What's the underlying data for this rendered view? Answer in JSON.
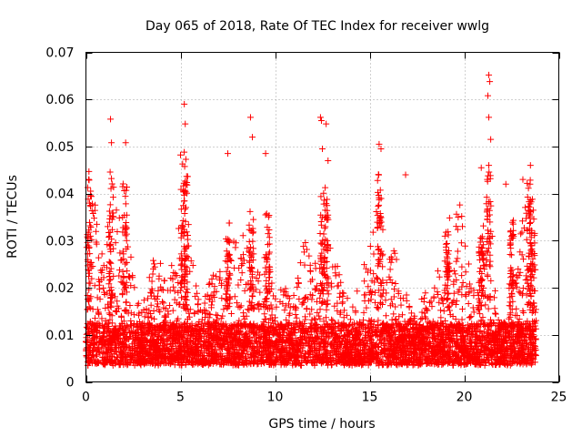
{
  "chart_data": {
    "type": "scatter",
    "title": "Day 065 of 2018, Rate Of TEC Index for receiver wwlg",
    "xlabel": "GPS time / hours",
    "ylabel": "ROTI / TECUs",
    "xlim": [
      0,
      25
    ],
    "ylim": [
      0,
      0.07
    ],
    "xticks": [
      0,
      5,
      10,
      15,
      20,
      25
    ],
    "yticks": [
      0,
      0.01,
      0.02,
      0.03,
      0.04,
      0.05,
      0.06,
      0.07
    ],
    "xtick_labels": [
      "0",
      "5",
      "10",
      "15",
      "20",
      "25"
    ],
    "ytick_labels": [
      "0",
      "0.01",
      "0.02",
      "0.03",
      "0.04",
      "0.05",
      "0.06",
      "0.07"
    ],
    "grid": true,
    "marker": "+",
    "color": "#ff0000",
    "data_range_x": [
      0,
      23.8
    ],
    "notable_points": [
      {
        "x": 1.3,
        "y": 0.0558
      },
      {
        "x": 1.35,
        "y": 0.0508
      },
      {
        "x": 2.1,
        "y": 0.0508
      },
      {
        "x": 5.2,
        "y": 0.059
      },
      {
        "x": 5.25,
        "y": 0.0548
      },
      {
        "x": 5.0,
        "y": 0.0482
      },
      {
        "x": 7.5,
        "y": 0.0485
      },
      {
        "x": 8.7,
        "y": 0.0562
      },
      {
        "x": 8.8,
        "y": 0.052
      },
      {
        "x": 9.5,
        "y": 0.0485
      },
      {
        "x": 12.4,
        "y": 0.0562
      },
      {
        "x": 12.45,
        "y": 0.0555
      },
      {
        "x": 12.7,
        "y": 0.0548
      },
      {
        "x": 12.5,
        "y": 0.0495
      },
      {
        "x": 12.8,
        "y": 0.047
      },
      {
        "x": 15.5,
        "y": 0.0505
      },
      {
        "x": 15.6,
        "y": 0.0495
      },
      {
        "x": 16.9,
        "y": 0.044
      },
      {
        "x": 21.3,
        "y": 0.0652
      },
      {
        "x": 21.35,
        "y": 0.0638
      },
      {
        "x": 21.25,
        "y": 0.0608
      },
      {
        "x": 21.3,
        "y": 0.0562
      },
      {
        "x": 21.4,
        "y": 0.0515
      },
      {
        "x": 21.3,
        "y": 0.046
      },
      {
        "x": 20.9,
        "y": 0.0455
      },
      {
        "x": 22.2,
        "y": 0.042
      },
      {
        "x": 23.5,
        "y": 0.046
      },
      {
        "x": 0.15,
        "y": 0.043
      },
      {
        "x": 0.25,
        "y": 0.0405
      },
      {
        "x": 23.1,
        "y": 0.043
      }
    ]
  }
}
